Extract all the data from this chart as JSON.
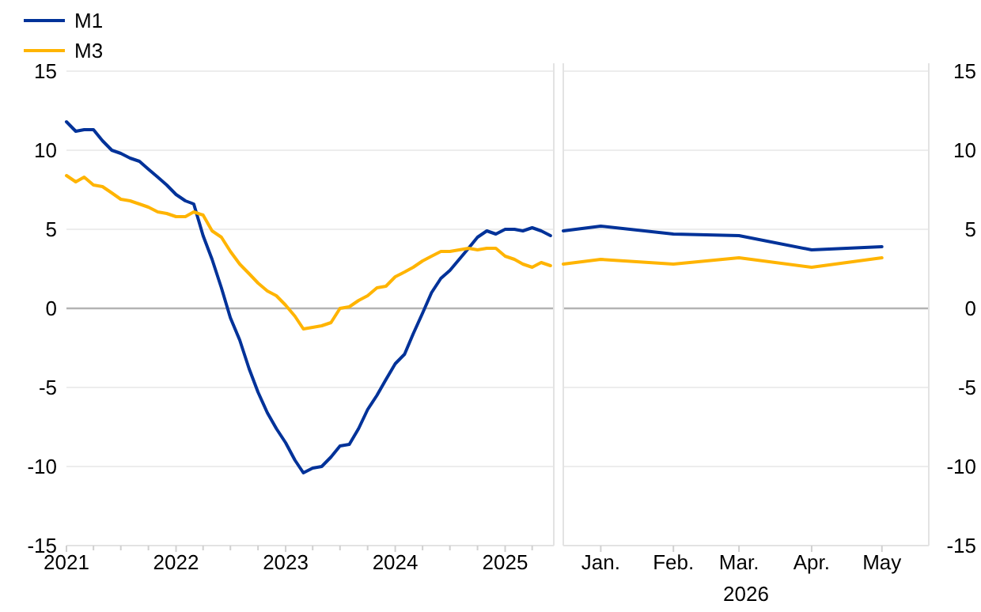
{
  "chart_data": [
    {
      "type": "line",
      "legend": "top left",
      "grid": "y",
      "x": [
        "2021-01",
        "2021-02",
        "2021-03",
        "2021-04",
        "2021-05",
        "2021-06",
        "2021-07",
        "2021-08",
        "2021-09",
        "2021-10",
        "2021-11",
        "2021-12",
        "2022-01",
        "2022-02",
        "2022-03",
        "2022-04",
        "2022-05",
        "2022-06",
        "2022-07",
        "2022-08",
        "2022-09",
        "2022-10",
        "2022-11",
        "2022-12",
        "2023-01",
        "2023-02",
        "2023-03",
        "2023-04",
        "2023-05",
        "2023-06",
        "2023-07",
        "2023-08",
        "2023-09",
        "2023-10",
        "2023-11",
        "2023-12",
        "2024-01",
        "2024-02",
        "2024-03",
        "2024-04",
        "2024-05",
        "2024-06",
        "2024-07",
        "2024-08",
        "2024-09",
        "2024-10",
        "2024-11",
        "2024-12",
        "2025-01",
        "2025-02",
        "2025-03",
        "2025-04",
        "2025-05",
        "2025-06"
      ],
      "series": [
        {
          "name": "M1",
          "color": "#003299",
          "values": [
            11.8,
            11.2,
            11.3,
            11.3,
            10.6,
            10.0,
            9.8,
            9.5,
            9.3,
            8.8,
            8.3,
            7.8,
            7.2,
            6.8,
            6.6,
            4.6,
            3.1,
            1.3,
            -0.6,
            -2.0,
            -3.8,
            -5.3,
            -6.6,
            -7.6,
            -8.5,
            -9.6,
            -10.4,
            -10.1,
            -10.0,
            -9.4,
            -8.7,
            -8.6,
            -7.6,
            -6.4,
            -5.5,
            -4.5,
            -3.5,
            -2.9,
            -1.6,
            -0.3,
            1.0,
            1.9,
            2.4,
            3.1,
            3.8,
            4.5,
            4.9,
            4.7,
            5.0,
            5.0,
            4.9,
            5.1,
            4.9,
            4.6
          ]
        },
        {
          "name": "M3",
          "color": "#ffb400",
          "values": [
            8.4,
            8.0,
            8.3,
            7.8,
            7.7,
            7.3,
            6.9,
            6.8,
            6.6,
            6.4,
            6.1,
            6.0,
            5.8,
            5.8,
            6.1,
            5.9,
            4.9,
            4.5,
            3.6,
            2.8,
            2.2,
            1.6,
            1.1,
            0.8,
            0.2,
            -0.5,
            -1.3,
            -1.2,
            -1.1,
            -0.9,
            0.0,
            0.1,
            0.5,
            0.8,
            1.3,
            1.4,
            2.0,
            2.3,
            2.6,
            3.0,
            3.3,
            3.6,
            3.6,
            3.7,
            3.8,
            3.7,
            3.8,
            3.8,
            3.3,
            3.1,
            2.8,
            2.6,
            2.9,
            2.7
          ]
        }
      ],
      "xlim": [
        "2021-01-01",
        "2025-06-12"
      ],
      "xticks": [
        "2021",
        {
          "value": "2021-04",
          "label": null
        },
        {
          "value": "2021-07",
          "label": null
        },
        {
          "value": "2021-10",
          "label": null
        },
        "2022",
        {
          "value": "2022-04",
          "label": null
        },
        {
          "value": "2022-07",
          "label": null
        },
        {
          "value": "2022-10",
          "label": null
        },
        "2023",
        {
          "value": "2023-04",
          "label": null
        },
        {
          "value": "2023-07",
          "label": null
        },
        {
          "value": "2023-10",
          "label": null
        },
        "2024",
        {
          "value": "2024-04",
          "label": null
        },
        {
          "value": "2024-07",
          "label": null
        },
        {
          "value": "2024-10",
          "label": null
        },
        "2025",
        {
          "value": "2025-04",
          "label": null
        }
      ],
      "ylim": [
        -15,
        15
      ],
      "yticks": [
        -15,
        -10,
        -5,
        0,
        5,
        10,
        15
      ],
      "ref_lines": [
        {
          "axis": "y",
          "value": 0,
          "color": "#b3b3b3"
        }
      ]
    },
    {
      "type": "line",
      "grid": "y",
      "xlabel": "2026",
      "x": [
        "2025-12-16",
        "2026-01",
        "2026-02",
        "2026-03",
        "2026-04",
        "2026-05"
      ],
      "series": [
        {
          "color": "#003299",
          "values": [
            4.9,
            5.2,
            4.7,
            4.6,
            3.7,
            3.9
          ]
        },
        {
          "color": "#ffb400",
          "values": [
            2.8,
            3.1,
            2.8,
            3.2,
            2.6,
            3.2
          ]
        }
      ],
      "xlim": [
        "2025-12-16",
        "2026-05-21"
      ],
      "xticks": [
        {
          "value": "2026-01",
          "label": "Jan."
        },
        {
          "value": "2026-02",
          "label": "Feb."
        },
        {
          "value": "2026-03",
          "label": "Mar."
        },
        {
          "value": "2026-04",
          "label": "Apr."
        },
        {
          "value": "2026-05",
          "label": "May"
        }
      ],
      "ylim": [
        -15,
        15
      ],
      "yticks": [
        -15,
        -10,
        -5,
        0,
        5,
        10,
        15
      ],
      "ref_lines": [
        {
          "axis": "y",
          "value": 0,
          "color": "#b3b3b3"
        }
      ]
    }
  ]
}
